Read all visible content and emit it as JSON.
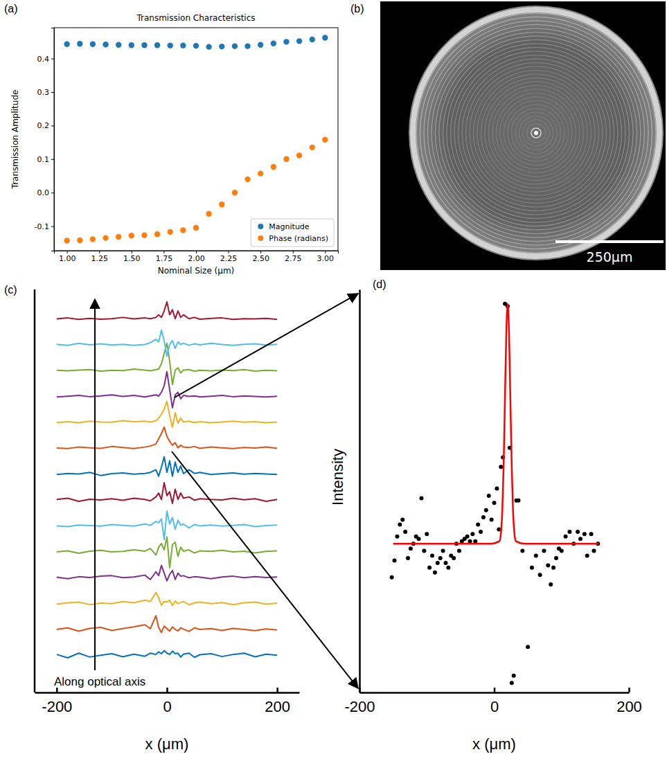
{
  "panel_labels": [
    "(a)",
    "(b)",
    "(c)",
    "(d)"
  ],
  "image": {
    "scale_bar_label": "250μm"
  },
  "chart_data": [
    {
      "type": "scatter",
      "title": "Transmission Characteristics",
      "xlabel": "Nominal Size (μm)",
      "ylabel": "Transmission Amplitude",
      "x": [
        1.0,
        1.1,
        1.2,
        1.3,
        1.4,
        1.5,
        1.6,
        1.7,
        1.8,
        1.9,
        2.0,
        2.1,
        2.2,
        2.3,
        2.4,
        2.5,
        2.6,
        2.7,
        2.8,
        2.9,
        3.0
      ],
      "series": [
        {
          "name": "Magnitude",
          "color": "#1f77b4",
          "values": [
            0.443,
            0.444,
            0.443,
            0.442,
            0.441,
            0.44,
            0.44,
            0.44,
            0.439,
            0.439,
            0.438,
            0.435,
            0.436,
            0.437,
            0.437,
            0.441,
            0.445,
            0.45,
            0.452,
            0.457,
            0.462
          ]
        },
        {
          "name": "Phase (radians)",
          "color": "#ff7f0e",
          "values": [
            -0.143,
            -0.142,
            -0.139,
            -0.135,
            -0.132,
            -0.128,
            -0.127,
            -0.124,
            -0.117,
            -0.112,
            -0.105,
            -0.063,
            -0.035,
            0.0,
            0.04,
            0.057,
            0.077,
            0.1,
            0.111,
            0.135,
            0.158
          ]
        }
      ],
      "xlim": [
        0.9,
        3.1
      ],
      "xticks": [
        {
          "value": 1,
          "label": "1.00"
        },
        {
          "value": 1.25,
          "label": "1.25"
        },
        {
          "value": 1.5,
          "label": "1.50"
        },
        {
          "value": 1.75,
          "label": "1.75"
        },
        {
          "value": 2,
          "label": "2.00"
        },
        {
          "value": 2.25,
          "label": "2.25"
        },
        {
          "value": 2.5,
          "label": "2.50"
        },
        {
          "value": 2.75,
          "label": "2.75"
        },
        {
          "value": 3,
          "label": "3.00"
        }
      ],
      "ylim": [
        -0.173,
        0.492
      ],
      "yticks": [
        -0.1,
        {
          "value": 0,
          "label": "0.0"
        },
        0.1,
        0.2,
        0.3,
        0.4
      ],
      "legend": "lower right"
    },
    {
      "type": "line",
      "xlabel": "x (μm)",
      "annotation": "Along optical axis",
      "x": [
        -200,
        -180,
        -160,
        -140,
        -120,
        -100,
        -80,
        -60,
        -40,
        -30,
        -20,
        -15,
        -10,
        -5,
        0,
        5,
        10,
        15,
        20,
        25,
        30,
        40,
        50,
        60,
        80,
        100,
        120,
        140,
        160,
        180,
        200
      ],
      "series": [
        {
          "color": "#0072BD",
          "values": [
            0.05,
            -0.08,
            0.1,
            -0.05,
            0.02,
            0.08,
            -0.04,
            0.06,
            -0.02,
            0.1,
            0.05,
            0.15,
            0.08,
            0.2,
            0.1,
            0.05,
            0.18,
            0.08,
            0.1,
            -0.05,
            0.06,
            0.1,
            -0.06,
            0.04,
            0.08,
            -0.03,
            0.05,
            0.1,
            -0.04,
            0.06,
            0.02
          ]
        },
        {
          "color": "#D95319",
          "values": [
            0.02,
            0.08,
            -0.05,
            0.06,
            0.1,
            -0.02,
            0.05,
            0.12,
            0.2,
            0.05,
            0.55,
            0.1,
            -0.1,
            0.15,
            0.05,
            -0.05,
            0.12,
            0.02,
            -0.04,
            0.08,
            0.03,
            -0.06,
            0.08,
            0.02,
            0.05,
            -0.02,
            0.06,
            0.02,
            -0.03,
            0.04,
            0.0
          ]
        },
        {
          "color": "#EDB120",
          "values": [
            0.0,
            0.05,
            0.08,
            -0.02,
            0.04,
            0.02,
            0.1,
            0.05,
            0.15,
            0.1,
            0.45,
            0.25,
            -0.05,
            0.1,
            0.08,
            0.15,
            -0.05,
            0.12,
            0.02,
            0.06,
            0.1,
            -0.03,
            0.05,
            0.08,
            0.02,
            0.06,
            -0.02,
            0.05,
            0.08,
            0.0,
            0.04
          ]
        },
        {
          "color": "#7E2F8E",
          "values": [
            0.04,
            -0.02,
            0.06,
            0.03,
            0.08,
            0.1,
            0.02,
            0.05,
            0.12,
            -0.05,
            0.25,
            0.1,
            0.5,
            0.2,
            -0.1,
            0.15,
            0.3,
            -0.05,
            0.2,
            0.08,
            0.1,
            0.02,
            0.06,
            0.04,
            -0.02,
            0.05,
            0.08,
            0.02,
            0.06,
            0.03,
            0.05
          ]
        },
        {
          "color": "#77AC30",
          "values": [
            0.02,
            0.06,
            -0.03,
            0.05,
            0.08,
            0.02,
            0.04,
            0.1,
            0.05,
            0.15,
            -0.1,
            0.2,
            0.35,
            0.1,
            0.6,
            -0.6,
            0.3,
            0.4,
            -0.15,
            0.2,
            0.05,
            0.1,
            -0.02,
            0.06,
            0.04,
            0.08,
            0.02,
            0.05,
            -0.02,
            0.04,
            0.06
          ]
        },
        {
          "color": "#4DBEEE",
          "values": [
            0.03,
            0.0,
            0.06,
            0.04,
            0.02,
            0.08,
            0.05,
            0.02,
            0.1,
            0.05,
            0.2,
            0.15,
            0.3,
            -0.5,
            0.6,
            0.1,
            0.35,
            -0.1,
            0.25,
            0.05,
            0.1,
            -0.05,
            0.08,
            0.03,
            0.06,
            0.02,
            0.05,
            0.08,
            0.0,
            0.04,
            0.06
          ]
        },
        {
          "color": "#A2142F",
          "values": [
            0.05,
            0.1,
            -0.02,
            0.06,
            0.03,
            0.08,
            0.02,
            0.1,
            0.05,
            0.0,
            0.15,
            0.3,
            0.05,
            0.7,
            0.2,
            0.35,
            -0.1,
            0.45,
            0.05,
            0.3,
            0.1,
            0.15,
            0.02,
            0.08,
            0.05,
            0.03,
            0.1,
            0.04,
            0.08,
            -0.02,
            0.05
          ]
        },
        {
          "color": "#0072BD",
          "values": [
            0.02,
            0.06,
            0.04,
            0.1,
            -0.02,
            0.05,
            0.08,
            0.03,
            0.06,
            0.1,
            0.2,
            -0.05,
            0.3,
            0.7,
            0.1,
            0.55,
            -0.05,
            0.5,
            0.1,
            0.35,
            0.05,
            0.2,
            0.06,
            0.1,
            0.02,
            0.05,
            0.08,
            0.03,
            0.06,
            0.04,
            0.02
          ]
        },
        {
          "color": "#D95319",
          "values": [
            0.04,
            0.02,
            0.08,
            0.05,
            0.03,
            0.1,
            0.06,
            0.02,
            0.08,
            0.12,
            0.2,
            0.4,
            0.6,
            0.85,
            0.5,
            0.3,
            0.15,
            0.25,
            0.05,
            0.15,
            0.08,
            0.06,
            0.1,
            0.03,
            0.08,
            0.05,
            0.02,
            0.06,
            0.04,
            0.08,
            0.03
          ]
        },
        {
          "color": "#EDB120",
          "values": [
            0.03,
            0.06,
            0.02,
            0.08,
            0.05,
            0.04,
            0.1,
            0.06,
            0.08,
            0.05,
            0.1,
            0.2,
            0.35,
            0.55,
            0.85,
            0.3,
            -0.15,
            0.4,
            0.0,
            0.2,
            0.05,
            0.08,
            0.03,
            0.06,
            0.02,
            0.05,
            0.08,
            0.04,
            0.06,
            0.02,
            0.05
          ]
        },
        {
          "color": "#7E2F8E",
          "values": [
            0.02,
            0.05,
            0.08,
            0.03,
            0.06,
            0.1,
            0.04,
            0.08,
            0.02,
            0.06,
            0.1,
            0.05,
            0.2,
            0.45,
            1.0,
            0.3,
            -0.4,
            0.1,
            0.2,
            -0.05,
            0.08,
            0.04,
            0.06,
            0.02,
            0.05,
            0.08,
            0.03,
            0.06,
            0.04,
            0.02,
            0.05
          ]
        },
        {
          "color": "#77AC30",
          "values": [
            0.05,
            0.03,
            0.06,
            0.08,
            0.02,
            0.05,
            0.04,
            0.1,
            0.06,
            0.03,
            0.08,
            0.1,
            0.3,
            0.7,
            1.1,
            0.4,
            -0.5,
            0.05,
            0.15,
            -0.05,
            0.06,
            0.08,
            0.02,
            0.05,
            0.03,
            0.06,
            0.04,
            0.08,
            0.02,
            0.05,
            0.03
          ]
        },
        {
          "color": "#4DBEEE",
          "values": [
            0.06,
            0.02,
            0.1,
            0.04,
            0.08,
            0.03,
            0.06,
            0.02,
            0.05,
            0.12,
            0.25,
            0.15,
            0.6,
            0.2,
            -0.4,
            0.05,
            0.2,
            -0.1,
            0.15,
            0.05,
            0.1,
            0.02,
            0.08,
            0.04,
            0.1,
            0.05,
            0.02,
            0.06,
            0.08,
            0.03,
            0.06
          ]
        },
        {
          "color": "#A2142F",
          "values": [
            0.04,
            0.08,
            0.02,
            0.06,
            0.03,
            0.05,
            0.1,
            0.04,
            0.08,
            0.05,
            0.1,
            0.2,
            0.1,
            0.35,
            0.7,
            0.2,
            0.4,
            0.05,
            0.35,
            0.1,
            0.2,
            0.05,
            0.1,
            0.03,
            0.06,
            0.08,
            0.02,
            0.05,
            0.04,
            0.06,
            0.02
          ]
        }
      ],
      "xlim": [
        -240,
        240
      ],
      "xticks": [
        -200,
        0,
        200
      ],
      "ylim": [
        -1,
        1.5
      ],
      "tick_labels": "x"
    },
    {
      "type": "scatter",
      "xlabel": "x (μm)",
      "ylabel": "Intensity",
      "series": [
        {
          "type": "scatter",
          "color": "#000000",
          "x": [
            -152,
            -148,
            -144,
            -140,
            -136,
            -132,
            -128,
            -124,
            -120,
            -116,
            -112,
            -108,
            -104,
            -100,
            -96,
            -92,
            -88,
            -84,
            -80,
            -76,
            -72,
            -68,
            -64,
            -60,
            -56,
            -52,
            -48,
            -44,
            -40,
            -36,
            -32,
            -28,
            -24,
            -20,
            -16,
            -12,
            -8,
            -4,
            0,
            4,
            7,
            10,
            13,
            16,
            20,
            23,
            26,
            29,
            33,
            36,
            42,
            50,
            56,
            62,
            68,
            74,
            80,
            84,
            88,
            92,
            96,
            100,
            106,
            112,
            118,
            124,
            128,
            134,
            138,
            144,
            148,
            154
          ],
          "values": [
            -0.14,
            -0.07,
            0.03,
            0.08,
            0.1,
            0.05,
            -0.06,
            -0.02,
            0.0,
            0.03,
            0.02,
            0.19,
            -0.03,
            0.04,
            -0.1,
            -0.05,
            -0.12,
            -0.08,
            -0.06,
            -0.03,
            -0.08,
            -0.1,
            -0.05,
            -0.06,
            0.0,
            -0.03,
            0.01,
            0.02,
            0.03,
            0.01,
            0.04,
            0.01,
            0.08,
            0.05,
            0.11,
            0.14,
            0.2,
            0.1,
            0.17,
            0.23,
            0.06,
            0.32,
            0.36,
            1.0,
            0.99,
            0.4,
            -0.58,
            -0.55,
            0.18,
            0.18,
            -0.03,
            -0.43,
            -0.1,
            -0.05,
            -0.13,
            -0.03,
            -0.09,
            -0.17,
            -0.1,
            -0.06,
            -0.02,
            -0.03,
            0.03,
            0.05,
            0.0,
            0.05,
            0.02,
            0.04,
            -0.05,
            0.04,
            -0.03,
            0.0
          ]
        },
        {
          "type": "line",
          "color": "#ff0000",
          "x": [
            -150,
            -5,
            8,
            10,
            12,
            14,
            16,
            18,
            20,
            22,
            24,
            26,
            28,
            30,
            32,
            45,
            155
          ],
          "values": [
            0,
            0,
            0.011,
            0.044,
            0.135,
            0.325,
            0.607,
            0.882,
            1,
            0.882,
            0.607,
            0.325,
            0.135,
            0.044,
            0.011,
            0,
            0
          ]
        }
      ],
      "xlim": [
        -200,
        200
      ],
      "xticks": [
        -200,
        0,
        200
      ],
      "ylim": [
        -0.62,
        1.06
      ],
      "tick_labels": "x"
    }
  ]
}
